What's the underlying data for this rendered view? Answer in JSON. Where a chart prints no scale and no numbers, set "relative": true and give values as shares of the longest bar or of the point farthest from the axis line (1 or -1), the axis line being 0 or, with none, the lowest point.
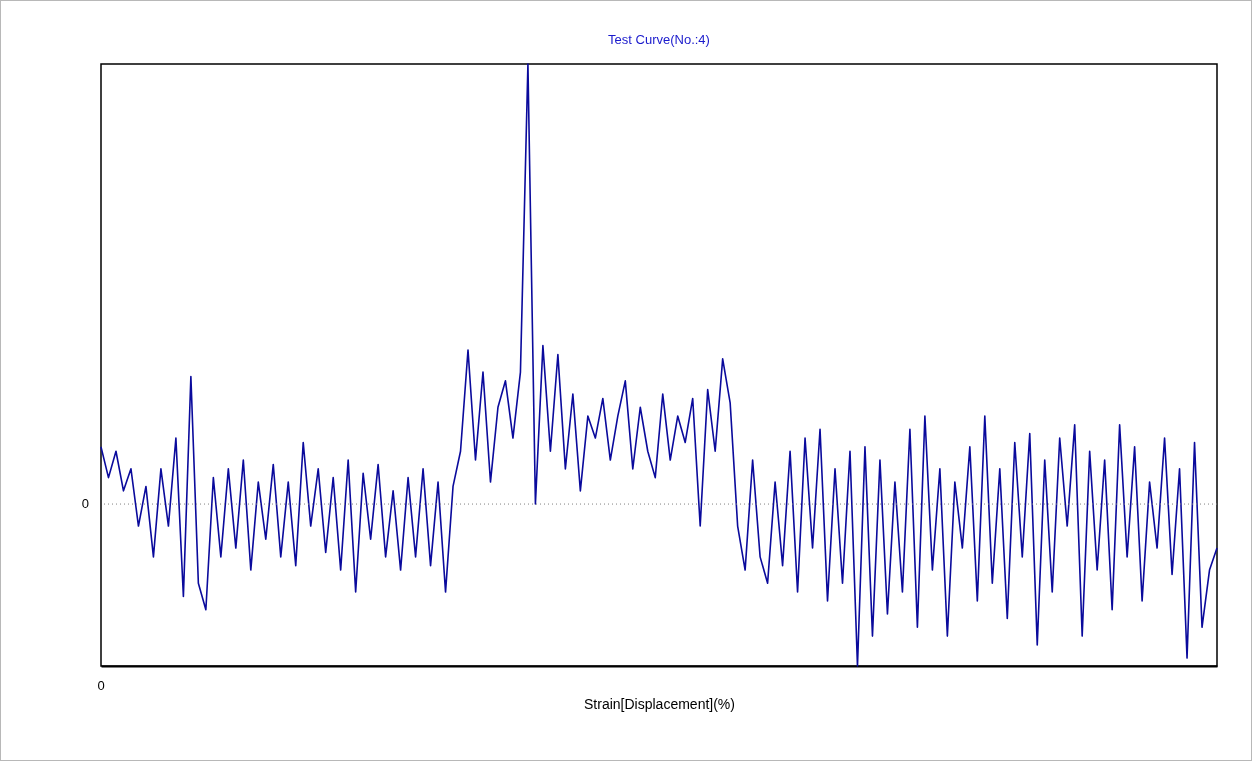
{
  "chart_data": {
    "type": "line",
    "title": "Test Curve(No.:4)",
    "xlabel": "Strain[Displacement](%)",
    "relative": true,
    "grid": false,
    "annotations": [
      "0"
    ],
    "marker": "none",
    "line_style": "solid",
    "categories": [
      null,
      null,
      null,
      null,
      null,
      null,
      null,
      null,
      null,
      null,
      null,
      null,
      null,
      null,
      null,
      null,
      null,
      null,
      null,
      null,
      null,
      null,
      null,
      null,
      null,
      null,
      null,
      null,
      null,
      null,
      null,
      null,
      null,
      null,
      null,
      null,
      null,
      null,
      null,
      null,
      null,
      null,
      null,
      null,
      null,
      null,
      null,
      null,
      null,
      null,
      null,
      null,
      null,
      null,
      null,
      null,
      null,
      null,
      null,
      null,
      null,
      null,
      null,
      null,
      null,
      null,
      null,
      null,
      null,
      null,
      null,
      null,
      null,
      null,
      null,
      null,
      null,
      null,
      null,
      null,
      null,
      null,
      null,
      null,
      null,
      null,
      null,
      null,
      null,
      null,
      null,
      null,
      null,
      null,
      null,
      null,
      null,
      null,
      null,
      null,
      null,
      null,
      null,
      null,
      null,
      null,
      null,
      null,
      null,
      null,
      null,
      null,
      null,
      null,
      null,
      null,
      null,
      null,
      null,
      null,
      null,
      null,
      null,
      null,
      null,
      null,
      null,
      null,
      null,
      null,
      null,
      null,
      null,
      null,
      null,
      null,
      null,
      null,
      null,
      null,
      null,
      null,
      null,
      null,
      null,
      null,
      null,
      null,
      null,
      null
    ],
    "series": [
      {
        "color": "#0a0a9c",
        "values": [
          0.13,
          0.06,
          0.12,
          0.03,
          0.08,
          -0.05,
          0.04,
          -0.12,
          0.08,
          -0.05,
          0.15,
          -0.21,
          0.29,
          -0.18,
          -0.24,
          0.06,
          -0.12,
          0.08,
          -0.1,
          0.1,
          -0.15,
          0.05,
          -0.08,
          0.09,
          -0.12,
          0.05,
          -0.14,
          0.14,
          -0.05,
          0.08,
          -0.11,
          0.06,
          -0.15,
          0.1,
          -0.2,
          0.07,
          -0.08,
          0.09,
          -0.12,
          0.03,
          -0.15,
          0.06,
          -0.12,
          0.08,
          -0.14,
          0.05,
          -0.2,
          0.04,
          0.12,
          0.35,
          0.1,
          0.3,
          0.05,
          0.22,
          0.28,
          0.15,
          0.3,
          1.0,
          0.0,
          0.36,
          0.12,
          0.34,
          0.08,
          0.25,
          0.03,
          0.2,
          0.15,
          0.24,
          0.1,
          0.2,
          0.28,
          0.08,
          0.22,
          0.12,
          0.06,
          0.25,
          0.1,
          0.2,
          0.14,
          0.24,
          -0.05,
          0.26,
          0.12,
          0.33,
          0.23,
          -0.05,
          -0.15,
          0.1,
          -0.12,
          -0.18,
          0.05,
          -0.14,
          0.12,
          -0.2,
          0.15,
          -0.1,
          0.17,
          -0.22,
          0.08,
          -0.18,
          0.12,
          -0.368,
          0.13,
          -0.3,
          0.1,
          -0.25,
          0.05,
          -0.2,
          0.17,
          -0.28,
          0.2,
          -0.15,
          0.08,
          -0.3,
          0.05,
          -0.1,
          0.13,
          -0.22,
          0.2,
          -0.18,
          0.08,
          -0.26,
          0.14,
          -0.12,
          0.16,
          -0.32,
          0.1,
          -0.2,
          0.15,
          -0.05,
          0.18,
          -0.3,
          0.12,
          -0.15,
          0.1,
          -0.24,
          0.18,
          -0.12,
          0.13,
          -0.22,
          0.05,
          -0.1,
          0.15,
          -0.16,
          0.08,
          -0.35,
          0.14,
          -0.28,
          -0.15,
          -0.1
        ]
      }
    ],
    "ref_lines": [
      {
        "axis": "y",
        "value": 0,
        "label": "0",
        "color": "#808080",
        "line_style": "dotted"
      }
    ]
  }
}
